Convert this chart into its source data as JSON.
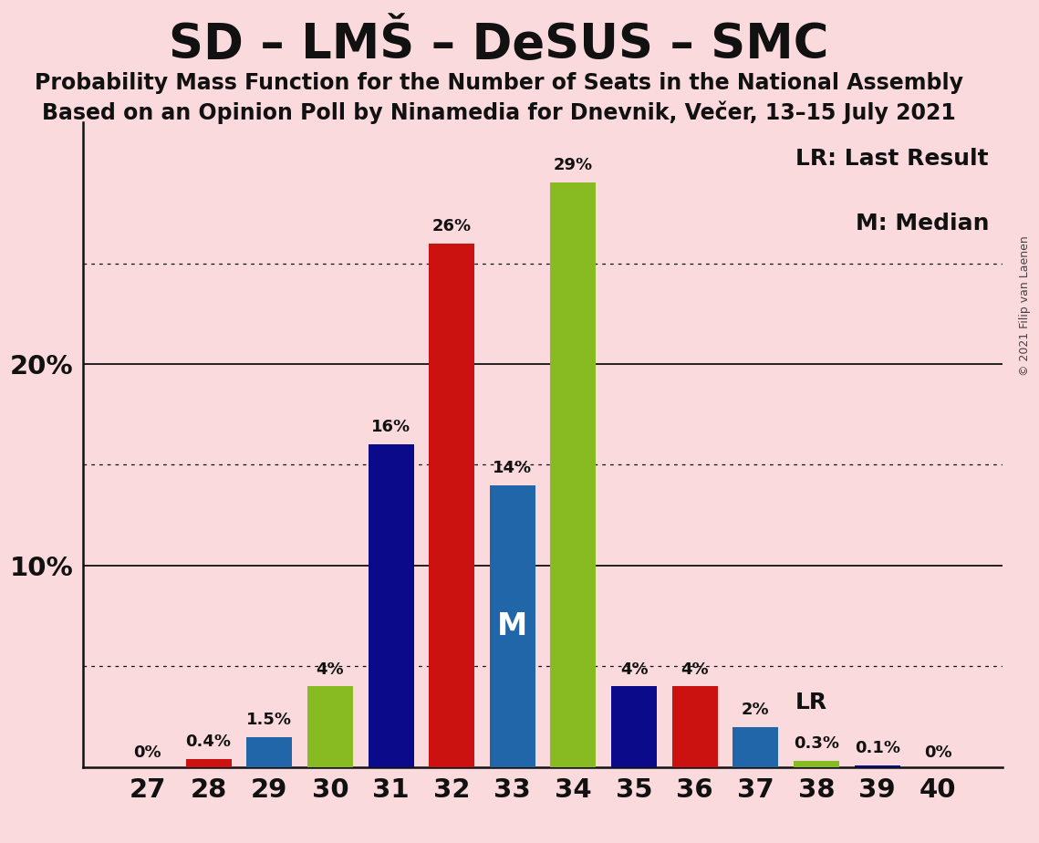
{
  "title": "SD – LMŠ – DeSUS – SMC",
  "subtitle1": "Probability Mass Function for the Number of Seats in the National Assembly",
  "subtitle2": "Based on an Opinion Poll by Ninamedia for Dnevnik, Večer, 13–15 July 2021",
  "copyright": "© 2021 Filip van Laenen",
  "seats": [
    27,
    28,
    29,
    30,
    31,
    32,
    33,
    34,
    35,
    36,
    37,
    38,
    39,
    40
  ],
  "values": [
    0.0,
    0.4,
    1.5,
    4.0,
    16.0,
    26.0,
    14.0,
    29.0,
    4.0,
    4.0,
    2.0,
    0.3,
    0.1,
    0.0
  ],
  "labels": [
    "0%",
    "0.4%",
    "1.5%",
    "4%",
    "16%",
    "26%",
    "14%",
    "29%",
    "4%",
    "4%",
    "2%",
    "0.3%",
    "0.1%",
    "0%"
  ],
  "colors": [
    "#0A0A8A",
    "#CC1111",
    "#2266AA",
    "#88BB22",
    "#0A0A8A",
    "#CC1111",
    "#2266AA",
    "#88BB22",
    "#0A0A8A",
    "#CC1111",
    "#2266AA",
    "#88BB22",
    "#0A0A8A",
    "#CC1111"
  ],
  "background_color": "#FADADD",
  "ylim": [
    0,
    32
  ],
  "dotted_gridlines": [
    5,
    15,
    25
  ],
  "solid_gridlines": [
    10,
    20
  ],
  "ytick_values": [
    10,
    20
  ],
  "ytick_labels": [
    "10%",
    "20%"
  ],
  "median_seat": 33,
  "lr_seat": 37,
  "lr_label": "LR",
  "lr_last_result_text": "LR: Last Result",
  "m_median_text": "M: Median",
  "title_fontsize": 38,
  "subtitle_fontsize": 17,
  "tick_fontsize": 21,
  "label_fontsize": 13,
  "annot_fontsize": 18,
  "copyright_fontsize": 9
}
